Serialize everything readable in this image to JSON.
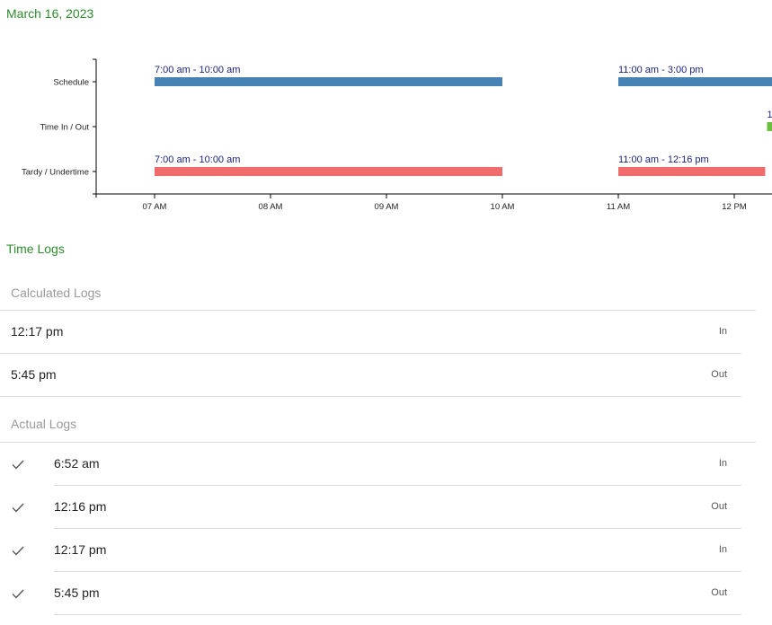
{
  "date_heading": "March 16, 2023",
  "chart_data": {
    "type": "timeline",
    "rows": [
      "Schedule",
      "Time In / Out",
      "Tardy / Undertime"
    ],
    "x_ticks": [
      "07 AM",
      "08 AM",
      "09 AM",
      "10 AM",
      "11 AM",
      "12 PM"
    ],
    "x_range_hours": [
      6.5,
      12.33
    ],
    "bars": [
      {
        "row": 0,
        "start": 7.0,
        "end": 10.0,
        "label": "7:00 am - 10:00 am",
        "color": "#4682b4"
      },
      {
        "row": 0,
        "start": 11.0,
        "end": 15.0,
        "label": "11:00 am - 3:00 pm",
        "color": "#4682b4"
      },
      {
        "row": 1,
        "start": 12.283,
        "end": 13.0,
        "label": "1",
        "color": "#6abf40"
      },
      {
        "row": 2,
        "start": 7.0,
        "end": 10.0,
        "label": "7:00 am - 10:00 am",
        "color": "#f06b6b"
      },
      {
        "row": 2,
        "start": 11.0,
        "end": 12.267,
        "label": "11:00 am - 12:16 pm",
        "color": "#f06b6b"
      }
    ]
  },
  "time_logs": {
    "title": "Time Logs",
    "calculated": {
      "header": "Calculated Logs",
      "items": [
        {
          "time": "12:17 pm",
          "type": "In"
        },
        {
          "time": "5:45 pm",
          "type": "Out"
        }
      ]
    },
    "actual": {
      "header": "Actual Logs",
      "items": [
        {
          "time": "6:52 am",
          "type": "In",
          "icon": "check-icon"
        },
        {
          "time": "12:16 pm",
          "type": "Out",
          "icon": "check-icon"
        },
        {
          "time": "12:17 pm",
          "type": "In",
          "icon": "check-icon"
        },
        {
          "time": "5:45 pm",
          "type": "Out",
          "icon": "check-icon"
        }
      ]
    }
  }
}
